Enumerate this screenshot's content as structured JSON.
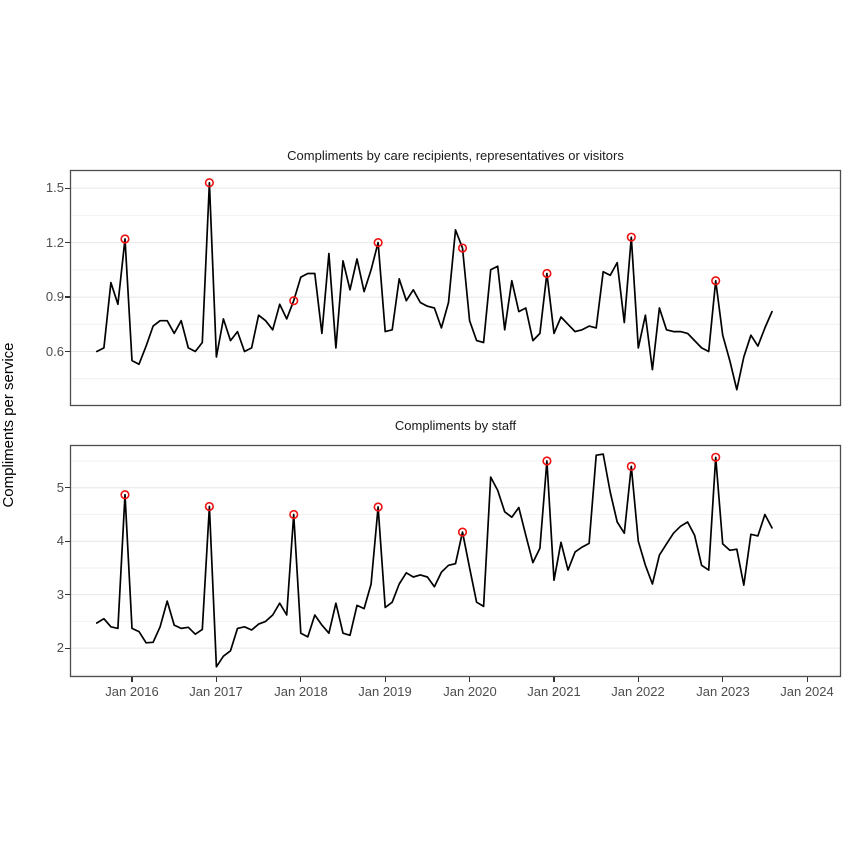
{
  "axis": {
    "y_axis_label": "Compliments per service",
    "x_tick_labels": [
      "Jan 2016",
      "Jan 2017",
      "Jan 2018",
      "Jan 2019",
      "Jan 2020",
      "Jan 2021",
      "Jan 2022",
      "Jan 2023",
      "Jan 2024"
    ]
  },
  "chart_data": [
    {
      "type": "line",
      "title": "Compliments by care recipients, representatives or visitors",
      "ylabel": "Compliments per service",
      "x_start": "2015-08",
      "x_freq": "monthly",
      "n_points": 97,
      "ylim": [
        0.3,
        1.6
      ],
      "yticks": [
        0.6,
        0.9,
        1.2,
        1.5
      ],
      "y_tick_labels": [
        "0.6",
        "0.9",
        "1.2",
        "1.5"
      ],
      "grid": "horizontal-only",
      "line_color": "#000000",
      "values": [
        0.6,
        0.62,
        0.98,
        0.86,
        1.22,
        0.55,
        0.53,
        0.63,
        0.74,
        0.77,
        0.77,
        0.7,
        0.77,
        0.62,
        0.6,
        0.65,
        1.53,
        0.57,
        0.78,
        0.66,
        0.71,
        0.6,
        0.62,
        0.8,
        0.77,
        0.72,
        0.86,
        0.78,
        0.88,
        1.01,
        1.03,
        1.03,
        0.7,
        1.14,
        0.62,
        1.1,
        0.94,
        1.11,
        0.93,
        1.05,
        1.2,
        0.71,
        0.72,
        1.0,
        0.88,
        0.94,
        0.87,
        0.85,
        0.84,
        0.73,
        0.87,
        1.27,
        1.17,
        0.77,
        0.66,
        0.65,
        1.05,
        1.07,
        0.72,
        0.99,
        0.82,
        0.84,
        0.66,
        0.7,
        1.03,
        0.7,
        0.79,
        0.75,
        0.71,
        0.72,
        0.74,
        0.73,
        1.04,
        1.02,
        1.09,
        0.76,
        1.23,
        0.62,
        0.8,
        0.5,
        0.84,
        0.72,
        0.71,
        0.71,
        0.7,
        0.66,
        0.62,
        0.6,
        0.99,
        0.69,
        0.55,
        0.39,
        0.57,
        0.69,
        0.63,
        0.73,
        0.82
      ],
      "highlight": {
        "marker": "open-circle",
        "color": "#ee1111",
        "months": [
          "2015-12",
          "2016-12",
          "2017-12",
          "2018-12",
          "2019-12",
          "2020-12",
          "2021-12",
          "2022-12"
        ],
        "indices": [
          4,
          16,
          28,
          40,
          52,
          64,
          76,
          88
        ],
        "values": [
          1.22,
          1.53,
          0.88,
          1.2,
          1.17,
          1.03,
          1.23,
          0.99
        ]
      }
    },
    {
      "type": "line",
      "title": "Compliments by staff",
      "ylabel": "Compliments per service",
      "x_start": "2015-08",
      "x_freq": "monthly",
      "n_points": 97,
      "ylim": [
        1.46,
        5.8
      ],
      "yticks": [
        2,
        3,
        4,
        5
      ],
      "y_tick_labels": [
        "2",
        "3",
        "4",
        "5"
      ],
      "grid": "horizontal-only",
      "line_color": "#000000",
      "values": [
        2.47,
        2.55,
        2.4,
        2.37,
        4.87,
        2.37,
        2.31,
        2.1,
        2.11,
        2.4,
        2.88,
        2.43,
        2.37,
        2.39,
        2.26,
        2.35,
        4.65,
        1.65,
        1.85,
        1.95,
        2.37,
        2.4,
        2.34,
        2.45,
        2.5,
        2.62,
        2.84,
        2.62,
        4.5,
        2.28,
        2.21,
        2.62,
        2.43,
        2.28,
        2.84,
        2.28,
        2.24,
        2.8,
        2.74,
        3.2,
        4.64,
        2.76,
        2.86,
        3.2,
        3.41,
        3.33,
        3.37,
        3.33,
        3.15,
        3.42,
        3.55,
        3.58,
        4.17,
        3.5,
        2.86,
        2.78,
        5.2,
        4.95,
        4.55,
        4.45,
        4.63,
        4.11,
        3.6,
        3.87,
        5.5,
        3.27,
        3.98,
        3.46,
        3.8,
        3.89,
        3.96,
        5.61,
        5.63,
        4.92,
        4.36,
        4.15,
        5.4,
        4.0,
        3.55,
        3.2,
        3.74,
        3.95,
        4.15,
        4.28,
        4.36,
        4.11,
        3.55,
        3.46,
        5.57,
        3.95,
        3.83,
        3.85,
        3.18,
        4.13,
        4.1,
        4.5,
        4.25
      ],
      "highlight": {
        "marker": "open-circle",
        "color": "#ee1111",
        "months": [
          "2015-12",
          "2016-12",
          "2017-12",
          "2018-12",
          "2019-12",
          "2020-12",
          "2021-12",
          "2022-12"
        ],
        "indices": [
          4,
          16,
          28,
          40,
          52,
          64,
          76,
          88
        ],
        "values": [
          4.87,
          4.65,
          4.5,
          4.64,
          4.17,
          5.5,
          5.4,
          5.57
        ]
      }
    }
  ],
  "style": {
    "panel_border_color": "#4d4d4d",
    "major_grid_color": "#e6e6e6",
    "minor_grid_color": "#f2f2f2",
    "axis_text_color": "#4d4d4d",
    "background": "#ffffff"
  }
}
